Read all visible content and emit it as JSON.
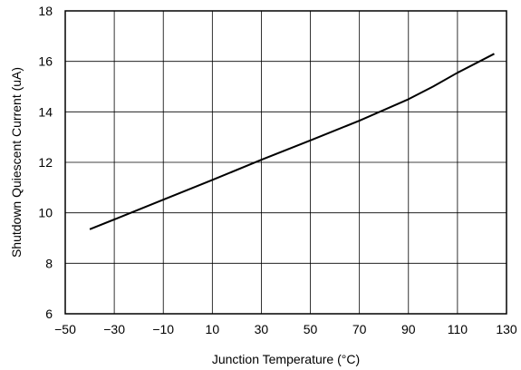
{
  "chart_data": {
    "type": "line",
    "xlabel": "Junction Temperature (°C)",
    "ylabel": "Shutdown Quiescent Current (uA)",
    "xlim": [
      -50,
      130
    ],
    "ylim": [
      6,
      18
    ],
    "x_ticks": [
      -50,
      -30,
      -10,
      10,
      30,
      50,
      70,
      90,
      110,
      130
    ],
    "y_ticks": [
      6,
      8,
      10,
      12,
      14,
      16,
      18
    ],
    "x_tick_labels": [
      "−50",
      "−30",
      "−10",
      "10",
      "30",
      "50",
      "70",
      "90",
      "110",
      "130"
    ],
    "y_tick_labels": [
      "6",
      "8",
      "10",
      "12",
      "14",
      "16",
      "18"
    ],
    "grid": true,
    "legend": "none",
    "series": [
      {
        "color": "#000000",
        "x": [
          -40,
          -25,
          -10,
          10,
          30,
          50,
          70,
          90,
          100,
          110,
          125
        ],
        "y": [
          9.35,
          9.93,
          10.52,
          11.3,
          12.1,
          12.87,
          13.65,
          14.5,
          15.0,
          15.55,
          16.3
        ]
      }
    ]
  }
}
